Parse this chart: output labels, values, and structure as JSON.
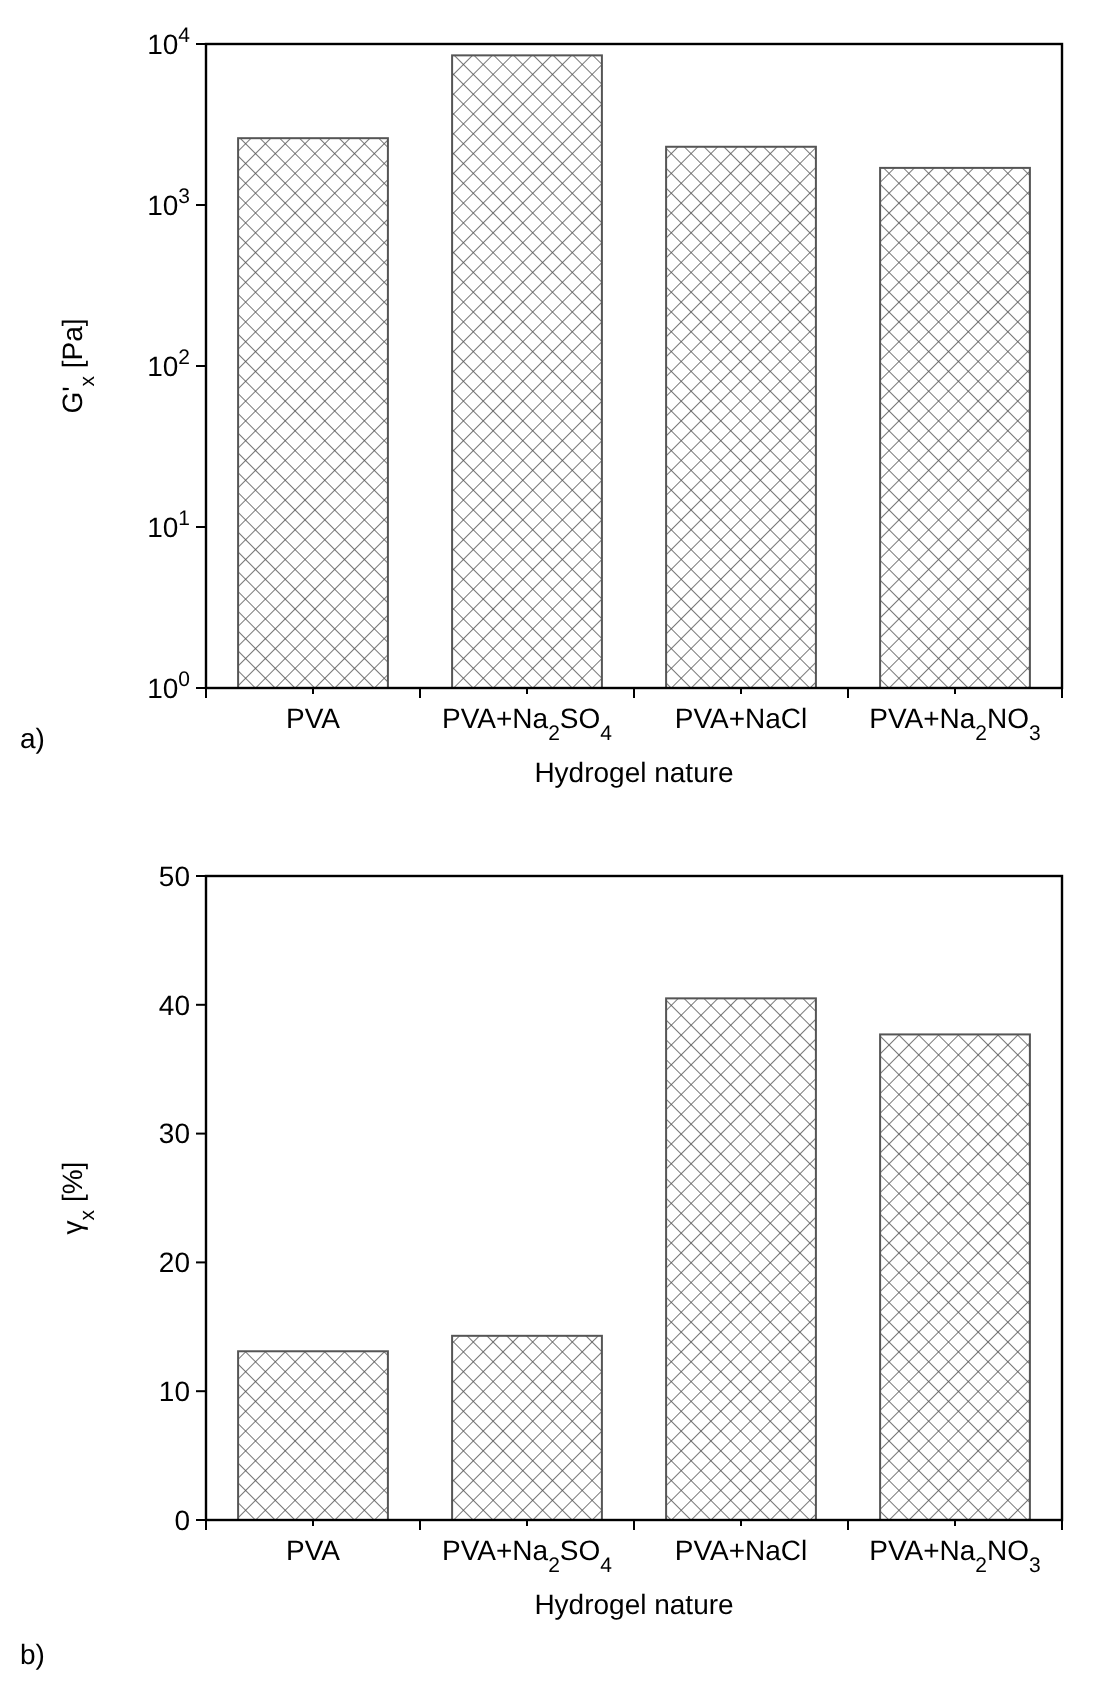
{
  "chart_data": [
    {
      "type": "bar",
      "xlabel": "Hydrogel nature",
      "ylabel": "G'$_{x}$ [Pa]",
      "categories": [
        "PVA",
        "PVA+Na$_{2}$SO$_{4}$",
        "PVA+NaCl",
        "PVA+Na$_{2}$NO$_{3}$"
      ],
      "values": [
        2600,
        8500,
        2300,
        1700
      ],
      "color": "#555555",
      "log": true,
      "ylim": [
        1,
        10000
      ],
      "yticks": [
        {
          "value": 1,
          "label": "10$^{0}$"
        },
        {
          "value": 10,
          "label": "10$^{1}$"
        },
        {
          "value": 100,
          "label": "10$^{2}$"
        },
        {
          "value": 1000,
          "label": "10$^{3}$"
        },
        {
          "value": 10000,
          "label": "10$^{4}$"
        }
      ],
      "annotations": [
        "a)"
      ]
    },
    {
      "type": "bar",
      "xlabel": "Hydrogel nature",
      "ylabel": "γ$_{x}$ [%]",
      "categories": [
        "PVA",
        "PVA+Na$_{2}$SO$_{4}$",
        "PVA+NaCl",
        "PVA+Na$_{2}$NO$_{3}$"
      ],
      "values": [
        13.1,
        14.3,
        40.5,
        37.7
      ],
      "color": "#555555",
      "ylim": [
        0,
        50
      ],
      "yticks": [
        0,
        10,
        20,
        30,
        40,
        50
      ],
      "annotations": [
        "b)"
      ]
    }
  ]
}
